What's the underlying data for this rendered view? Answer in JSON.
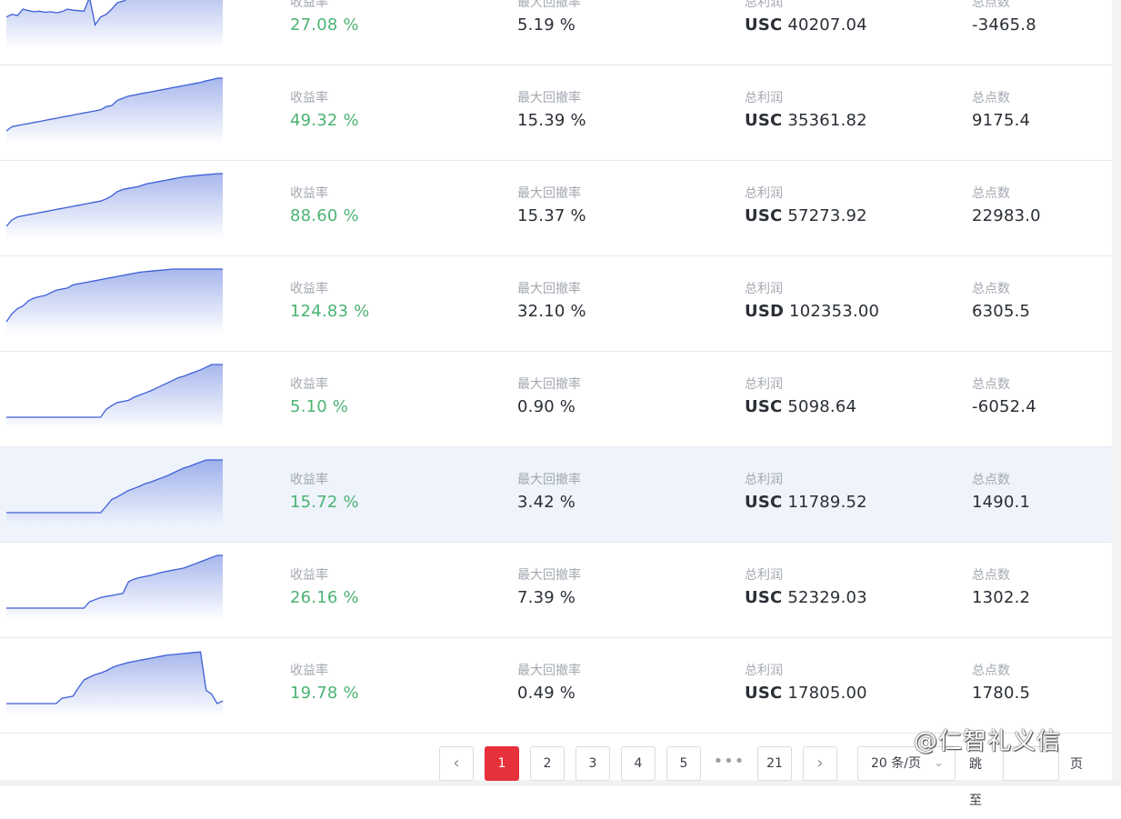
{
  "labels": {
    "return": "收益率",
    "drawdown": "最大回撤率",
    "profit": "总利润",
    "points": "总点数"
  },
  "colors": {
    "positive": "#4cb374",
    "active_page": "#e6303a",
    "spark": "#3d5fd6"
  },
  "rows": [
    {
      "return": "27.08 %",
      "drawdown": "5.19 %",
      "currency": "USC",
      "profit": "40207.04",
      "points": "-3465.8",
      "spark": [
        0.35,
        0.4,
        0.38,
        0.5,
        0.47,
        0.45,
        0.46,
        0.44,
        0.45,
        0.43,
        0.45,
        0.5,
        0.48,
        0.47,
        0.46,
        0.72,
        0.2,
        0.35,
        0.4,
        0.5,
        0.62,
        0.65,
        0.7,
        0.75,
        0.78,
        0.8,
        0.83,
        0.82,
        0.86,
        0.9,
        0.92,
        0.94,
        0.95,
        0.92,
        0.96,
        1.0,
        0.96,
        1.0,
        1.0,
        1.0
      ]
    },
    {
      "return": "49.32 %",
      "drawdown": "15.39 %",
      "currency": "USC",
      "profit": "35361.82",
      "points": "9175.4",
      "spark": [
        0.0,
        0.08,
        0.1,
        0.12,
        0.14,
        0.16,
        0.18,
        0.2,
        0.22,
        0.24,
        0.26,
        0.28,
        0.3,
        0.32,
        0.34,
        0.36,
        0.38,
        0.4,
        0.46,
        0.48,
        0.58,
        0.62,
        0.66,
        0.68,
        0.7,
        0.72,
        0.74,
        0.76,
        0.78,
        0.8,
        0.82,
        0.84,
        0.86,
        0.88,
        0.9,
        0.92,
        0.95,
        0.97,
        1.0,
        1.0
      ]
    },
    {
      "return": "88.60 %",
      "drawdown": "15.37 %",
      "currency": "USC",
      "profit": "57273.92",
      "points": "22983.0",
      "spark": [
        0.0,
        0.12,
        0.18,
        0.2,
        0.22,
        0.24,
        0.26,
        0.28,
        0.3,
        0.32,
        0.34,
        0.36,
        0.38,
        0.4,
        0.42,
        0.44,
        0.46,
        0.48,
        0.52,
        0.58,
        0.66,
        0.7,
        0.72,
        0.74,
        0.76,
        0.8,
        0.82,
        0.84,
        0.86,
        0.88,
        0.9,
        0.92,
        0.94,
        0.95,
        0.96,
        0.97,
        0.98,
        0.99,
        1.0,
        1.0
      ]
    },
    {
      "return": "124.83 %",
      "drawdown": "32.10 %",
      "currency": "USD",
      "profit": "102353.00",
      "points": "6305.5",
      "spark": [
        0.0,
        0.15,
        0.25,
        0.3,
        0.4,
        0.45,
        0.48,
        0.5,
        0.55,
        0.6,
        0.62,
        0.64,
        0.7,
        0.72,
        0.74,
        0.76,
        0.78,
        0.8,
        0.82,
        0.84,
        0.86,
        0.88,
        0.9,
        0.92,
        0.94,
        0.95,
        0.96,
        0.97,
        0.98,
        0.99,
        1.0,
        1.0,
        1.0,
        1.0,
        1.0,
        1.0,
        1.0,
        1.0,
        1.0,
        1.0
      ]
    },
    {
      "return": "5.10 %",
      "drawdown": "0.90 %",
      "currency": "USC",
      "profit": "5098.64",
      "points": "-6052.4",
      "spark": [
        0.0,
        0.0,
        0.0,
        0.0,
        0.0,
        0.0,
        0.0,
        0.0,
        0.0,
        0.0,
        0.0,
        0.0,
        0.0,
        0.0,
        0.0,
        0.0,
        0.0,
        0.0,
        0.15,
        0.22,
        0.28,
        0.3,
        0.32,
        0.38,
        0.42,
        0.46,
        0.5,
        0.55,
        0.6,
        0.65,
        0.7,
        0.75,
        0.78,
        0.82,
        0.86,
        0.9,
        0.95,
        1.0,
        1.0,
        1.0
      ]
    },
    {
      "return": "15.72 %",
      "drawdown": "3.42 %",
      "currency": "USC",
      "profit": "11789.52",
      "points": "1490.1",
      "spark": [
        0.0,
        0.0,
        0.0,
        0.0,
        0.0,
        0.0,
        0.0,
        0.0,
        0.0,
        0.0,
        0.0,
        0.0,
        0.0,
        0.0,
        0.0,
        0.0,
        0.0,
        0.0,
        0.12,
        0.25,
        0.3,
        0.36,
        0.42,
        0.46,
        0.5,
        0.55,
        0.58,
        0.62,
        0.66,
        0.7,
        0.75,
        0.8,
        0.85,
        0.88,
        0.92,
        0.96,
        1.0,
        1.0,
        1.0,
        1.0
      ]
    },
    {
      "return": "26.16 %",
      "drawdown": "7.39 %",
      "currency": "USC",
      "profit": "52329.03",
      "points": "1302.2",
      "spark": [
        0.0,
        0.0,
        0.0,
        0.0,
        0.0,
        0.0,
        0.0,
        0.0,
        0.0,
        0.0,
        0.0,
        0.0,
        0.0,
        0.0,
        0.0,
        0.12,
        0.16,
        0.2,
        0.22,
        0.24,
        0.26,
        0.28,
        0.5,
        0.55,
        0.58,
        0.6,
        0.62,
        0.65,
        0.68,
        0.7,
        0.72,
        0.74,
        0.76,
        0.8,
        0.84,
        0.88,
        0.92,
        0.96,
        1.0,
        1.0
      ]
    },
    {
      "return": "19.78 %",
      "drawdown": "0.49 %",
      "currency": "USC",
      "profit": "17805.00",
      "points": "1780.5",
      "spark": [
        0.0,
        0.0,
        0.0,
        0.0,
        0.0,
        0.0,
        0.0,
        0.0,
        0.0,
        0.0,
        0.1,
        0.12,
        0.14,
        0.3,
        0.45,
        0.5,
        0.55,
        0.58,
        0.62,
        0.68,
        0.72,
        0.75,
        0.78,
        0.8,
        0.82,
        0.84,
        0.86,
        0.88,
        0.9,
        0.92,
        0.93,
        0.94,
        0.95,
        0.96,
        0.97,
        0.98,
        0.25,
        0.18,
        0.0,
        0.05
      ]
    }
  ],
  "pagination": {
    "prev_icon": "chevron-left-icon",
    "next_icon": "chevron-right-icon",
    "pages": [
      "1",
      "2",
      "3",
      "4",
      "5"
    ],
    "ellipsis": "•••",
    "last_page": "21",
    "active_page": "1",
    "page_size": "20 条/页",
    "jump_label": "跳至",
    "page_suffix": "页"
  },
  "watermark": "@仁智礼义信"
}
